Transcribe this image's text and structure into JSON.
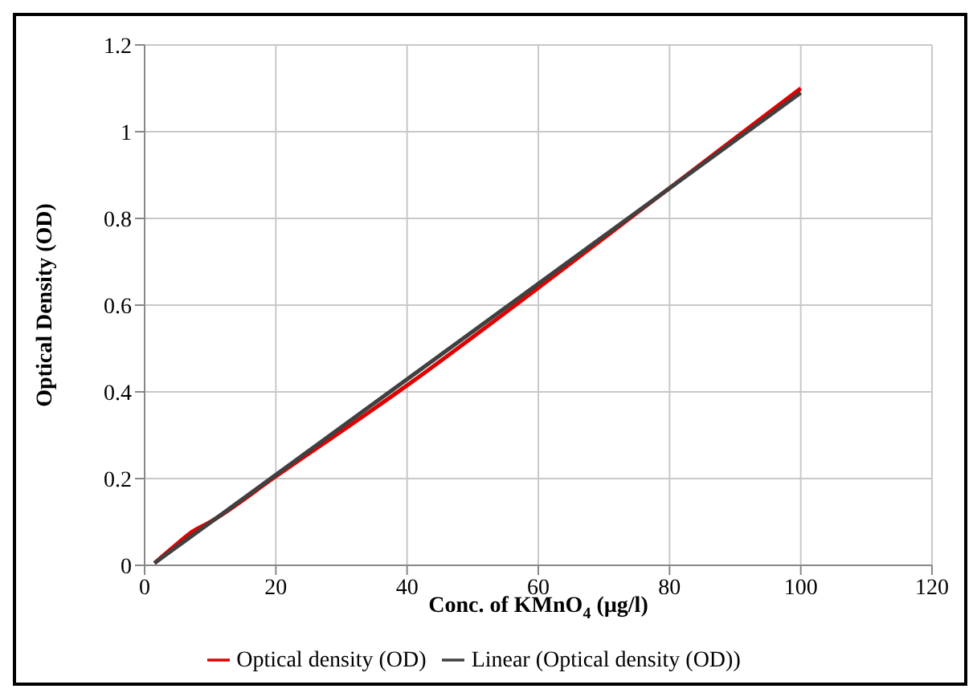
{
  "chart_data": {
    "type": "line",
    "xlabel": "Conc. of KMnO$_{4}$ (µg/l)",
    "ylabel": "Optical Density  (OD)",
    "xlim": [
      0,
      120
    ],
    "xticks": [
      0,
      20,
      40,
      60,
      80,
      100,
      120
    ],
    "ylim": [
      0,
      1.2
    ],
    "yticks": [
      0,
      0.2,
      0.4,
      0.6,
      0.8,
      1,
      1.2
    ],
    "grid": true,
    "legend": "bottom",
    "marker": "none",
    "series": [
      {
        "name": "Optical density  (OD)",
        "color": "#e00000",
        "x": [
          1.5,
          5,
          7,
          10,
          20,
          40,
          60,
          80,
          100
        ],
        "values": [
          0.005,
          0.05,
          0.075,
          0.1,
          0.205,
          0.415,
          0.64,
          0.87,
          1.1
        ]
      },
      {
        "name": "Linear (Optical density  (OD))",
        "color": "#404040",
        "x": [
          1.5,
          100
        ],
        "values": [
          0.005,
          1.09
        ]
      }
    ]
  }
}
